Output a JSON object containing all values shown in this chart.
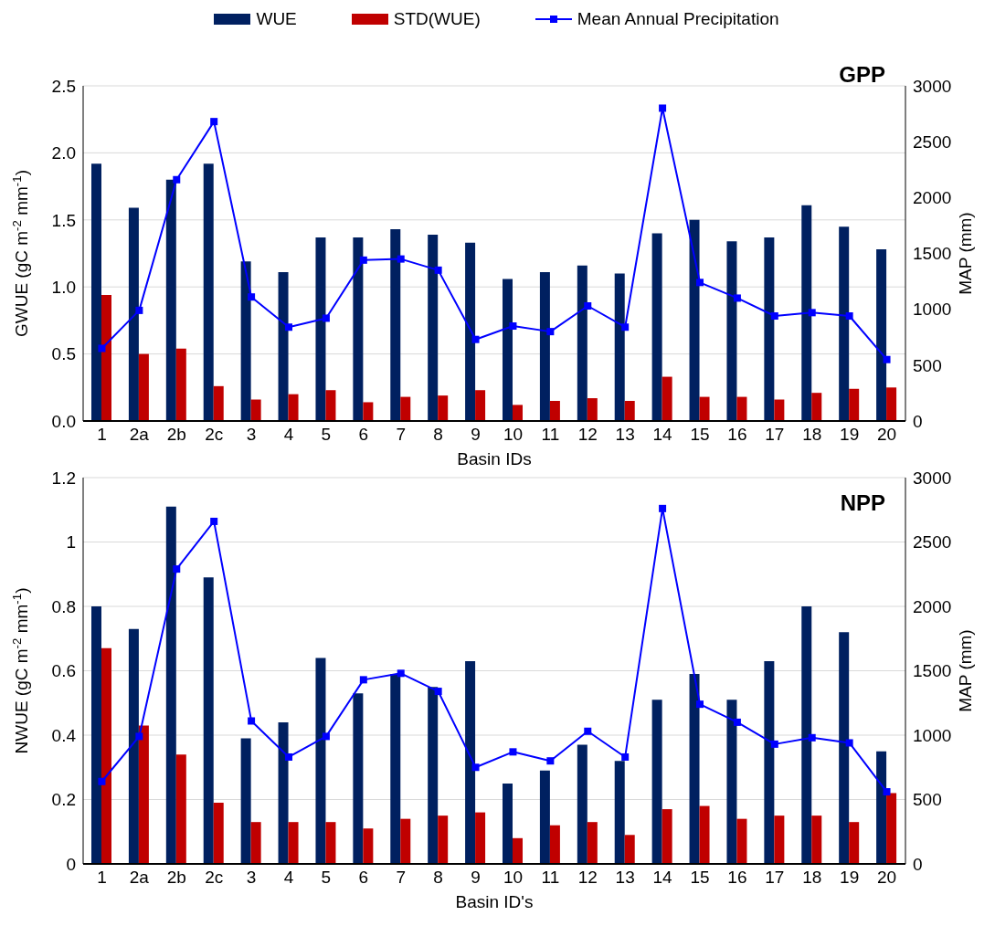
{
  "chart_data": [
    {
      "type": "bar",
      "title": "GPP",
      "xlabel": "Basin IDs",
      "ylabel": "GWUE (gC m$^{-2}$ mm$^{-1}$)",
      "y2label": "MAP (mm)",
      "categories": [
        "1",
        "2a",
        "2b",
        "2c",
        "3",
        "4",
        "5",
        "6",
        "7",
        "8",
        "9",
        "10",
        "11",
        "12",
        "13",
        "14",
        "15",
        "16",
        "17",
        "18",
        "19",
        "20"
      ],
      "series": [
        {
          "name": "WUE",
          "color": "#002060",
          "values": [
            1.92,
            1.59,
            1.8,
            1.92,
            1.19,
            1.11,
            1.37,
            1.37,
            1.43,
            1.39,
            1.33,
            1.06,
            1.11,
            1.16,
            1.1,
            1.4,
            1.5,
            1.34,
            1.37,
            1.61,
            1.45,
            1.28
          ]
        },
        {
          "name": "STD(WUE)",
          "color": "#c00000",
          "values": [
            0.94,
            0.5,
            0.54,
            0.26,
            0.16,
            0.2,
            0.23,
            0.14,
            0.18,
            0.19,
            0.23,
            0.12,
            0.15,
            0.17,
            0.15,
            0.33,
            0.18,
            0.18,
            0.16,
            0.21,
            0.24,
            0.25
          ]
        },
        {
          "name": "Mean Annual Precipitation",
          "type": "line",
          "axis": "y2",
          "marker": "square",
          "color": "#0000ff",
          "values": [
            650,
            990,
            2160,
            2680,
            1110,
            840,
            920,
            1440,
            1450,
            1350,
            730,
            850,
            800,
            1030,
            840,
            2800,
            1240,
            1100,
            940,
            970,
            940,
            550
          ]
        }
      ],
      "ylim": [
        0,
        2.5
      ],
      "yticks": [
        {
          "value": 0,
          "label": "0.0"
        },
        {
          "value": 0.5,
          "label": "0.5"
        },
        {
          "value": 1,
          "label": "1.0"
        },
        {
          "value": 1.5,
          "label": "1.5"
        },
        {
          "value": 2,
          "label": "2.0"
        },
        {
          "value": 2.5,
          "label": "2.5"
        }
      ],
      "y2lim": [
        0,
        3000
      ],
      "y2ticks": [
        0,
        500,
        1000,
        1500,
        2000,
        2500,
        3000
      ],
      "grid": "y",
      "legend": "top"
    },
    {
      "type": "bar",
      "title": "NPP",
      "xlabel": "Basin ID's",
      "ylabel": "NWUE (gC m$^{-2}$ mm$^{-1}$)",
      "y2label": "MAP (mm)",
      "categories": [
        "1",
        "2a",
        "2b",
        "2c",
        "3",
        "4",
        "5",
        "6",
        "7",
        "8",
        "9",
        "10",
        "11",
        "12",
        "13",
        "14",
        "15",
        "16",
        "17",
        "18",
        "19",
        "20"
      ],
      "series": [
        {
          "color": "#002060",
          "values": [
            0.8,
            0.73,
            1.11,
            0.89,
            0.39,
            0.44,
            0.64,
            0.53,
            0.59,
            0.55,
            0.63,
            0.25,
            0.29,
            0.37,
            0.32,
            0.51,
            0.59,
            0.51,
            0.63,
            0.8,
            0.72,
            0.35
          ]
        },
        {
          "color": "#c00000",
          "values": [
            0.67,
            0.43,
            0.34,
            0.19,
            0.13,
            0.13,
            0.13,
            0.11,
            0.14,
            0.15,
            0.16,
            0.08,
            0.12,
            0.13,
            0.09,
            0.17,
            0.18,
            0.14,
            0.15,
            0.15,
            0.13,
            0.22
          ]
        },
        {
          "type": "line",
          "axis": "y2",
          "marker": "square",
          "color": "#0000ff",
          "values": [
            640,
            990,
            2290,
            2660,
            1110,
            830,
            990,
            1430,
            1480,
            1340,
            750,
            870,
            800,
            1030,
            830,
            2760,
            1240,
            1100,
            930,
            980,
            940,
            560
          ]
        }
      ],
      "ylim": [
        0,
        1.2
      ],
      "yticks": [
        0,
        0.2,
        0.4,
        0.6,
        0.8,
        1,
        1.2
      ],
      "y2lim": [
        0,
        3000
      ],
      "y2ticks": [
        0,
        500,
        1000,
        1500,
        2000,
        2500,
        3000
      ],
      "grid": "y",
      "legend": false
    }
  ]
}
